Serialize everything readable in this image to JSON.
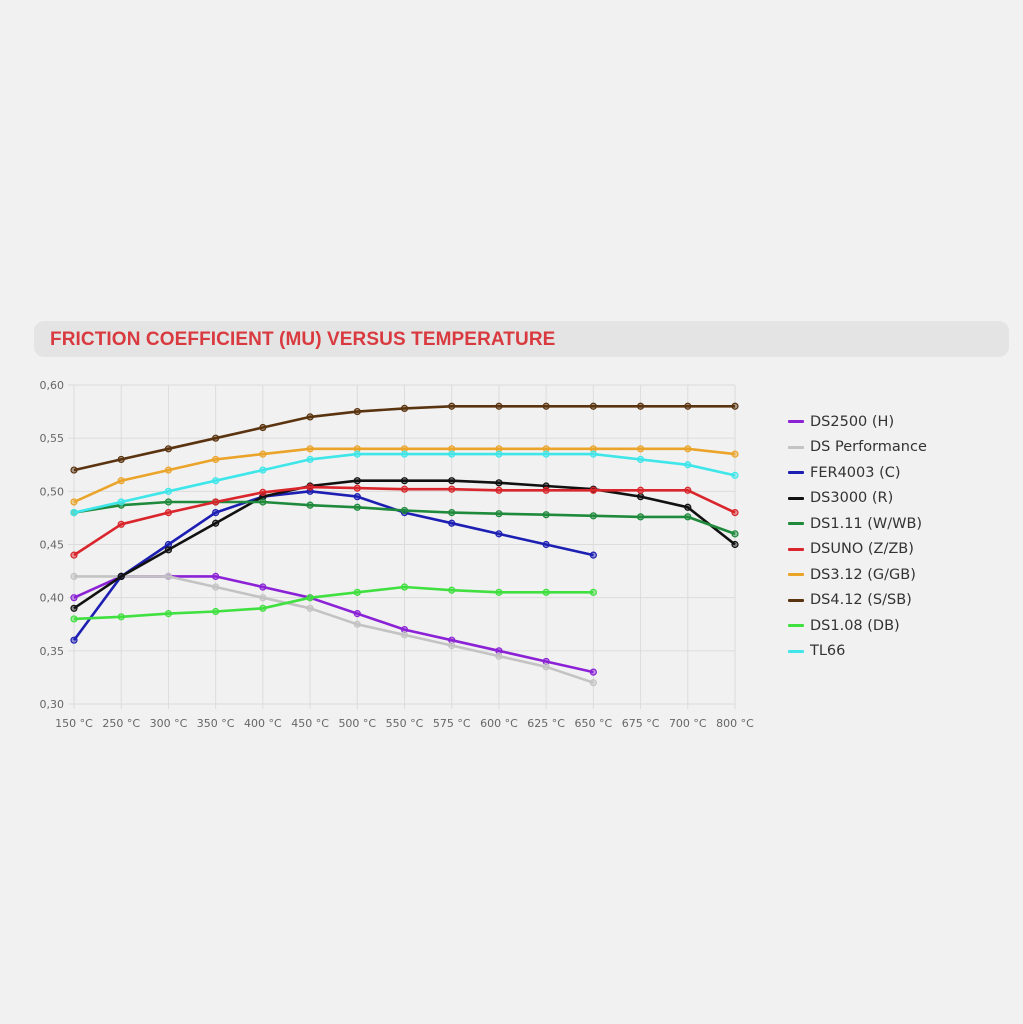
{
  "chart_data": {
    "type": "line",
    "title": "FRICTION COEFFICIENT (MU) VERSUS TEMPERATURE",
    "xlabel": "",
    "ylabel": "",
    "categories": [
      "150 °C",
      "250 °C",
      "300 °C",
      "350 °C",
      "400 °C",
      "450 °C",
      "500 °C",
      "550 °C",
      "575 °C",
      "600 °C",
      "625 °C",
      "650 °C",
      "675 °C",
      "700 °C",
      "800 °C"
    ],
    "yticks": [
      "0,30",
      "0,35",
      "0,40",
      "0,45",
      "0,50",
      "0,55",
      "0,60"
    ],
    "ylim": [
      0.3,
      0.6
    ],
    "grid": true,
    "legend_position": "right",
    "series": [
      {
        "name": "DS2500 (H)",
        "color": "#8b22d6",
        "values": [
          0.4,
          0.42,
          0.42,
          0.42,
          0.41,
          0.4,
          0.385,
          0.37,
          0.36,
          0.35,
          0.34,
          0.33,
          null,
          null,
          null
        ]
      },
      {
        "name": "DS Performance",
        "color": "#c3c3c3",
        "values": [
          0.42,
          0.42,
          0.42,
          0.41,
          0.4,
          0.39,
          0.375,
          0.365,
          0.355,
          0.345,
          0.335,
          0.32,
          null,
          null,
          null
        ]
      },
      {
        "name": "FER4003 (C)",
        "color": "#1d1fb3",
        "values": [
          0.36,
          0.42,
          0.45,
          0.48,
          0.495,
          0.5,
          0.495,
          0.48,
          0.47,
          0.46,
          0.45,
          0.44,
          null,
          null,
          null
        ]
      },
      {
        "name": "DS3000 (R)",
        "color": "#111111",
        "values": [
          0.39,
          0.42,
          0.445,
          0.47,
          0.495,
          0.505,
          0.51,
          0.51,
          0.51,
          0.508,
          0.505,
          0.502,
          0.495,
          0.485,
          0.45
        ]
      },
      {
        "name": "DS1.11 (W/WB)",
        "color": "#1f8a3b",
        "values": [
          0.48,
          0.487,
          0.49,
          0.49,
          0.49,
          0.487,
          0.485,
          0.482,
          0.48,
          0.479,
          0.478,
          0.477,
          0.476,
          0.476,
          0.46
        ]
      },
      {
        "name": "DSUNO (Z/ZB)",
        "color": "#d9252b",
        "values": [
          0.44,
          0.469,
          0.48,
          0.49,
          0.499,
          0.504,
          0.503,
          0.502,
          0.502,
          0.501,
          0.501,
          0.501,
          0.501,
          0.501,
          0.48
        ]
      },
      {
        "name": "DS3.12 (G/GB)",
        "color": "#eba42a",
        "values": [
          0.49,
          0.51,
          0.52,
          0.53,
          0.535,
          0.54,
          0.54,
          0.54,
          0.54,
          0.54,
          0.54,
          0.54,
          0.54,
          0.54,
          0.535
        ]
      },
      {
        "name": "DS4.12 (S/SB)",
        "color": "#5a3410",
        "values": [
          0.52,
          0.53,
          0.54,
          0.55,
          0.56,
          0.57,
          0.575,
          0.578,
          0.58,
          0.58,
          0.58,
          0.58,
          0.58,
          0.58,
          0.58
        ]
      },
      {
        "name": "DS1.08 (DB)",
        "color": "#3fe03f",
        "values": [
          0.38,
          0.382,
          0.385,
          0.387,
          0.39,
          0.4,
          0.405,
          0.41,
          0.407,
          0.405,
          0.405,
          0.405,
          null,
          null,
          null
        ]
      },
      {
        "name": "TL66",
        "color": "#3ee6ea",
        "values": [
          0.48,
          0.49,
          0.5,
          0.51,
          0.52,
          0.53,
          0.535,
          0.535,
          0.535,
          0.535,
          0.535,
          0.535,
          0.53,
          0.525,
          0.515
        ]
      }
    ]
  }
}
